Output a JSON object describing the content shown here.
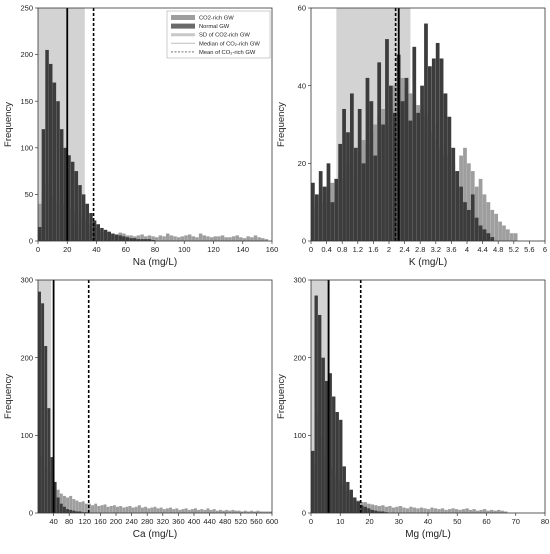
{
  "chart_data": [
    {
      "id": "na",
      "type": "bar",
      "xlabel": "Na (mg/L)",
      "ylabel": "Frequency",
      "xlim": [
        0,
        160
      ],
      "ylim": [
        0,
        250
      ],
      "xticks": [
        0,
        20,
        40,
        60,
        80,
        100,
        120,
        140,
        160
      ],
      "yticks": [
        0,
        50,
        100,
        150,
        200,
        250
      ],
      "bin_start": 0,
      "bin_width": 2.5,
      "sd_band": [
        0,
        32
      ],
      "median": 20,
      "mean": 38,
      "series": [
        {
          "name": "CO2-rich GW",
          "color": "#9e9e9e",
          "values": [
            40,
            55,
            62,
            50,
            48,
            42,
            40,
            38,
            36,
            30,
            30,
            26,
            24,
            20,
            18,
            14,
            12,
            10,
            10,
            8,
            8,
            7,
            9,
            8,
            6,
            6,
            5,
            6,
            7,
            5,
            6,
            5,
            4,
            6,
            5,
            8,
            6,
            5,
            4,
            5,
            6,
            7,
            5,
            4,
            8,
            6,
            5,
            4,
            5,
            5,
            6,
            4,
            4,
            5,
            6,
            4,
            3,
            5,
            4,
            6,
            4,
            3,
            2
          ]
        },
        {
          "name": "Normal GW",
          "color": "#3c3c3c",
          "values": [
            15,
            120,
            205,
            190,
            170,
            150,
            120,
            100,
            92,
            85,
            75,
            60,
            50,
            40,
            30,
            22,
            18,
            14,
            12,
            10,
            8,
            7,
            6,
            5,
            4,
            3,
            3,
            2,
            2,
            2,
            2,
            1
          ]
        }
      ],
      "legend": {
        "position": "top-right",
        "items": [
          {
            "label": "CO2-rich GW",
            "style": "fill-light"
          },
          {
            "label": "Normal GW",
            "style": "fill-dark"
          },
          {
            "label": "SD of CO2-rich GW",
            "style": "band"
          },
          {
            "label": "Median of CO₂-rich GW",
            "style": "solid-line"
          },
          {
            "label": "Mean of CO₂-rich GW",
            "style": "dashed-line"
          }
        ]
      }
    },
    {
      "id": "k",
      "type": "bar",
      "xlabel": "K (mg/L)",
      "ylabel": "Frequency",
      "xlim": [
        0,
        6
      ],
      "ylim": [
        0,
        60
      ],
      "xticks": [
        0,
        0.4,
        0.8,
        1.2,
        1.6,
        2,
        2.4,
        2.8,
        3.2,
        3.6,
        4,
        4.4,
        4.8,
        5.2,
        5.6,
        6
      ],
      "xtick_labels": [
        "0",
        "0.4",
        "0.8",
        "1.2",
        "1.6",
        "2",
        "2.4",
        "2.8",
        "3.2",
        "3.6",
        "4",
        "4.4",
        "4.8",
        "5.2",
        "5.6",
        "6"
      ],
      "yticks": [
        0,
        20,
        40,
        60
      ],
      "bin_start": 0,
      "bin_width": 0.1,
      "sd_band": [
        0.65,
        2.55
      ],
      "median": 2.25,
      "mean": 2.17,
      "series": [
        {
          "name": "CO2-rich GW",
          "color": "#9e9e9e",
          "values": [
            8,
            10,
            12,
            10,
            14,
            15,
            12,
            18,
            16,
            20,
            18,
            22,
            24,
            26,
            25,
            28,
            30,
            32,
            34,
            30,
            36,
            40,
            38,
            42,
            40,
            38,
            36,
            35,
            34,
            32,
            28,
            30,
            26,
            24,
            22,
            24,
            20,
            18,
            22,
            24,
            20,
            18,
            14,
            16,
            12,
            10,
            8,
            7,
            5,
            4,
            3,
            2,
            2
          ]
        },
        {
          "name": "Normal GW",
          "color": "#3c3c3c",
          "values": [
            15,
            12,
            18,
            14,
            20,
            10,
            16,
            25,
            34,
            28,
            38,
            24,
            34,
            20,
            42,
            36,
            22,
            46,
            30,
            52,
            40,
            33,
            48,
            36,
            42,
            31,
            50,
            33,
            40,
            56,
            45,
            47,
            51,
            47,
            38,
            32,
            24,
            18,
            14,
            10,
            8,
            12,
            6,
            4,
            3,
            2,
            1
          ]
        }
      ]
    },
    {
      "id": "ca",
      "type": "bar",
      "xlabel": "Ca (mg/L)",
      "ylabel": "Frequency",
      "xlim": [
        0,
        600
      ],
      "ylim": [
        0,
        300
      ],
      "xticks": [
        40,
        80,
        120,
        160,
        200,
        240,
        280,
        320,
        360,
        400,
        440,
        480,
        520,
        560,
        600
      ],
      "yticks": [
        0,
        100,
        200,
        300
      ],
      "bin_start": 0,
      "bin_width": 8,
      "sd_band": [
        0,
        34
      ],
      "median": 40,
      "mean": 130,
      "series": [
        {
          "name": "CO2-rich GW",
          "color": "#9e9e9e",
          "values": [
            70,
            75,
            60,
            50,
            45,
            35,
            30,
            25,
            22,
            20,
            22,
            18,
            16,
            14,
            15,
            12,
            12,
            10,
            12,
            9,
            10,
            11,
            8,
            9,
            10,
            8,
            9,
            7,
            8,
            9,
            7,
            8,
            10,
            7,
            8,
            6,
            7,
            8,
            6,
            7,
            5,
            6,
            7,
            5,
            6,
            4,
            5,
            6,
            4,
            5,
            6,
            4,
            5,
            4,
            6,
            4,
            5,
            3,
            4,
            3,
            4,
            3,
            4,
            3,
            3,
            2,
            3,
            2,
            3,
            2,
            3,
            2,
            2,
            2,
            2
          ]
        },
        {
          "name": "Normal GW",
          "color": "#3c3c3c",
          "values": [
            285,
            270,
            215,
            135,
            72,
            40,
            20,
            12,
            8,
            5,
            4,
            3,
            2,
            2,
            1,
            1
          ]
        }
      ]
    },
    {
      "id": "mg",
      "type": "bar",
      "xlabel": "Mg (mg/L)",
      "ylabel": "Frequency",
      "xlim": [
        0,
        80
      ],
      "ylim": [
        0,
        300
      ],
      "xticks": [
        0,
        10,
        20,
        30,
        40,
        50,
        60,
        70,
        80
      ],
      "yticks": [
        0,
        100,
        200,
        300
      ],
      "bin_start": 0,
      "bin_width": 1.2,
      "sd_band": [
        0,
        6.5
      ],
      "median": 6,
      "mean": 17,
      "series": [
        {
          "name": "CO2-rich GW",
          "color": "#9e9e9e",
          "values": [
            60,
            130,
            100,
            80,
            70,
            60,
            55,
            45,
            40,
            35,
            28,
            25,
            20,
            16,
            14,
            14,
            12,
            11,
            10,
            9,
            10,
            8,
            9,
            7,
            8,
            9,
            7,
            6,
            8,
            7,
            6,
            7,
            6,
            5,
            7,
            6,
            5,
            6,
            4,
            5,
            6,
            5,
            4,
            5,
            6,
            4,
            5,
            3,
            4,
            5,
            3,
            4,
            3,
            4,
            3,
            2
          ]
        },
        {
          "name": "Normal GW",
          "color": "#3c3c3c",
          "values": [
            80,
            280,
            255,
            200,
            170,
            180,
            150,
            130,
            120,
            60,
            40,
            30,
            20,
            15,
            10,
            8,
            6,
            4,
            3,
            2,
            2,
            1
          ]
        }
      ]
    }
  ]
}
